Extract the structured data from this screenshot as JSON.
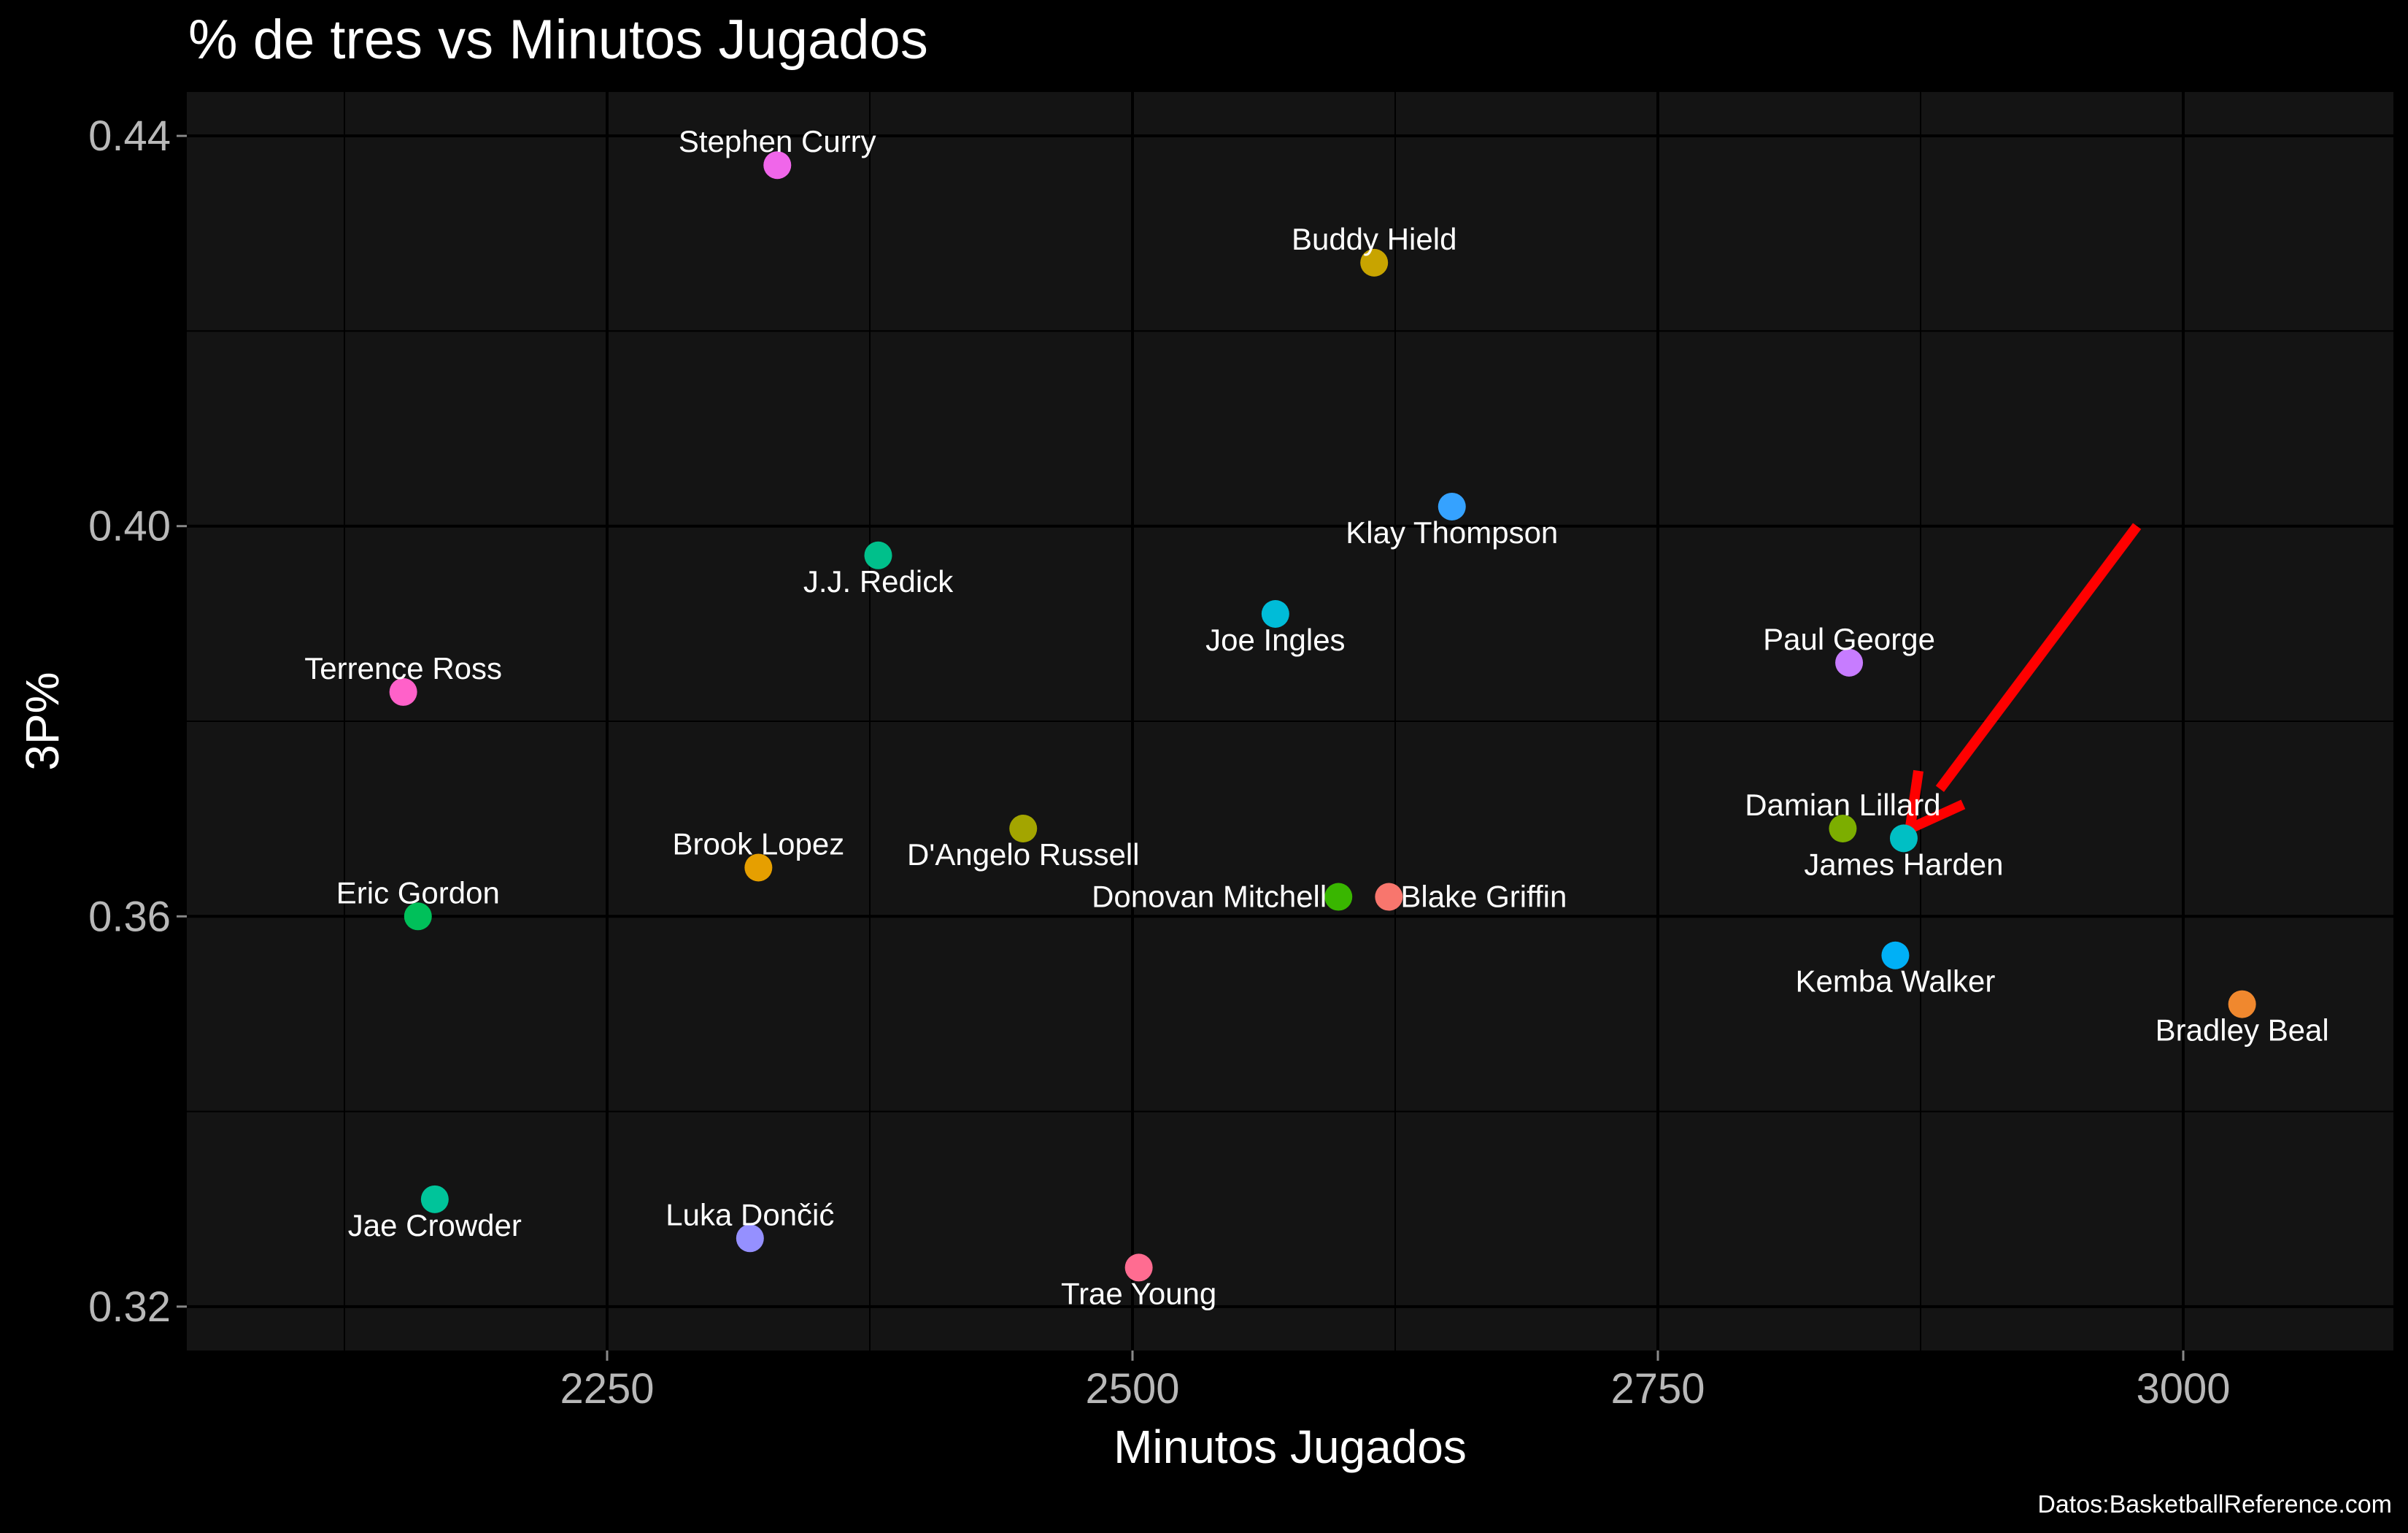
{
  "chart_data": {
    "type": "scatter",
    "title": "% de tres vs Minutos Jugados",
    "xlabel": "Minutos Jugados",
    "ylabel": "3P%",
    "caption": "Datos:BasketballReference.com",
    "xlim": [
      2050,
      3100
    ],
    "ylim": [
      0.3155,
      0.4445
    ],
    "x_ticks": [
      2250,
      2500,
      2750,
      3000
    ],
    "x_tick_labels": [
      "2250",
      "2500",
      "2750",
      "3000"
    ],
    "y_ticks": [
      0.32,
      0.36,
      0.4,
      0.44
    ],
    "y_tick_labels": [
      "0.32",
      "0.36",
      "0.40",
      "0.44"
    ],
    "grid": true,
    "background": "#141414",
    "points": [
      {
        "label": "Stephen Curry",
        "x": 2331,
        "y": 0.437,
        "color": "#F066EA",
        "label_pos": "above"
      },
      {
        "label": "Buddy Hield",
        "x": 2615,
        "y": 0.427,
        "color": "#C8A400",
        "label_pos": "above"
      },
      {
        "label": "Klay Thompson",
        "x": 2652,
        "y": 0.402,
        "color": "#35A2FF",
        "label_pos": "below"
      },
      {
        "label": "J.J. Redick",
        "x": 2379,
        "y": 0.397,
        "color": "#00C08B",
        "label_pos": "below"
      },
      {
        "label": "Joe Ingles",
        "x": 2568,
        "y": 0.391,
        "color": "#00BCD8",
        "label_pos": "below"
      },
      {
        "label": "Paul George",
        "x": 2841,
        "y": 0.386,
        "color": "#C77CFF",
        "label_pos": "above"
      },
      {
        "label": "Terrence Ross",
        "x": 2153,
        "y": 0.383,
        "color": "#FF61C9",
        "label_pos": "above"
      },
      {
        "label": "D'Angelo Russell",
        "x": 2448,
        "y": 0.369,
        "color": "#A3A500",
        "label_pos": "below"
      },
      {
        "label": "Damian Lillard",
        "x": 2838,
        "y": 0.369,
        "color": "#7CAE00",
        "label_pos": "above"
      },
      {
        "label": "James Harden",
        "x": 2867,
        "y": 0.368,
        "color": "#00BFC4",
        "label_pos": "below"
      },
      {
        "label": "Brook Lopez",
        "x": 2322,
        "y": 0.365,
        "color": "#E69F00",
        "label_pos": "above"
      },
      {
        "label": "Donovan Mitchell",
        "x": 2598,
        "y": 0.362,
        "color": "#39B600",
        "label_pos": "left"
      },
      {
        "label": "Blake Griffin",
        "x": 2622,
        "y": 0.362,
        "color": "#F8766D",
        "label_pos": "right"
      },
      {
        "label": "Eric Gordon",
        "x": 2160,
        "y": 0.36,
        "color": "#00C05A",
        "label_pos": "above"
      },
      {
        "label": "Kemba Walker",
        "x": 2863,
        "y": 0.356,
        "color": "#00B0F6",
        "label_pos": "below"
      },
      {
        "label": "Bradley Beal",
        "x": 3028,
        "y": 0.351,
        "color": "#F0882E",
        "label_pos": "below"
      },
      {
        "label": "Jae Crowder",
        "x": 2168,
        "y": 0.331,
        "color": "#00C49A",
        "label_pos": "below"
      },
      {
        "label": "Luka Dončić",
        "x": 2318,
        "y": 0.327,
        "color": "#9590FF",
        "label_pos": "above"
      },
      {
        "label": "Trae Young",
        "x": 2503,
        "y": 0.324,
        "color": "#FF6C91",
        "label_pos": "below"
      }
    ],
    "annotation": {
      "type": "arrow",
      "color": "#FF0000",
      "from": {
        "x": 2978,
        "y": 0.4
      },
      "to": {
        "x": 2870,
        "y": 0.369
      },
      "points_to": "James Harden"
    }
  }
}
